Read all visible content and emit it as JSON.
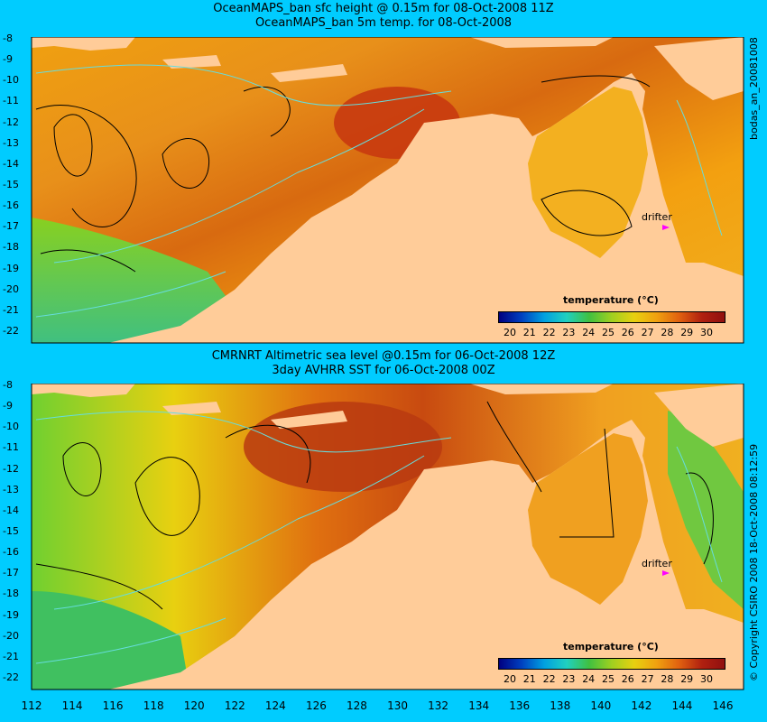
{
  "panels": [
    {
      "title_line1": "OceanMAPS_ban sfc height @ 0.15m for 08-Oct-2008 11Z",
      "title_line2": "OceanMAPS_ban 5m temp. for 08-Oct-2008",
      "side_label": "bodas_an_20081008",
      "drifter_label": "drifter",
      "colorbar_title": "temperature (°C)"
    },
    {
      "title_line1": "CMRNRT Altimetric sea level  @0.15m  for 06-Oct-2008 12Z",
      "title_line2": "3day AVHRR SST for 06-Oct-2008 00Z",
      "side_label": "© Copyright CSIRO 2008   18-Oct-2008 08:12:59",
      "drifter_label": "drifter",
      "colorbar_title": "temperature (°C)"
    }
  ],
  "x_ticks": [
    "112",
    "114",
    "116",
    "118",
    "120",
    "122",
    "124",
    "126",
    "128",
    "130",
    "132",
    "134",
    "136",
    "138",
    "140",
    "142",
    "144",
    "146"
  ],
  "y_ticks": [
    "-8",
    "-9",
    "-10",
    "-11",
    "-12",
    "-13",
    "-14",
    "-15",
    "-16",
    "-17",
    "-18",
    "-19",
    "-20",
    "-21",
    "-22"
  ],
  "colorbar_ticks": [
    "20",
    "21",
    "22",
    "23",
    "24",
    "25",
    "26",
    "27",
    "28",
    "29",
    "30"
  ],
  "colors": {
    "background": "#00ccff",
    "land": "#ffcc99",
    "contour_cyan": "#66dddd",
    "drifter": "#ff00ff"
  }
}
